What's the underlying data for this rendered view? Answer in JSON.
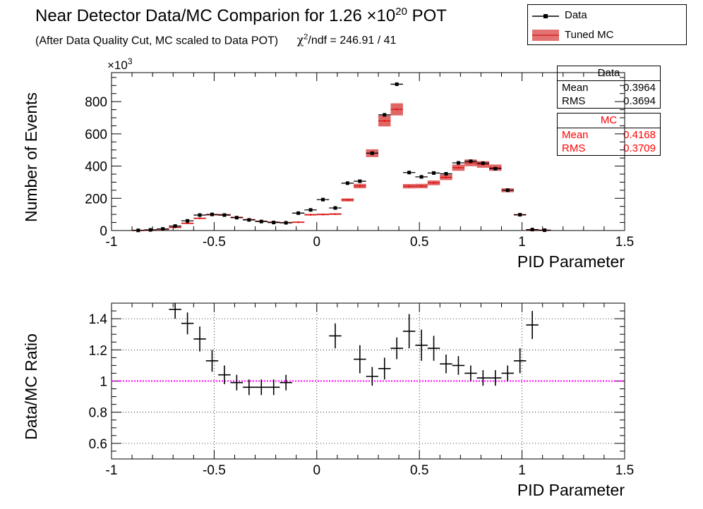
{
  "title": "Near Detector Data/MC Comparion for 1.26 ×10",
  "title_exp": "20",
  "title_tail": " POT",
  "subtitle": "(After Data Quality Cut, MC scaled to Data POT)",
  "chi_sym": "χ",
  "chi_exp": "2",
  "chi_text": "/ndf = 246.91 / 41",
  "legend": {
    "items": [
      {
        "label": "Data",
        "color": "#000000"
      },
      {
        "label": "Tuned MC",
        "color": "#cc0000"
      }
    ]
  },
  "stats_data": {
    "header": "Data",
    "mean_label": "Mean",
    "mean": "0.3964",
    "rms_label": "RMS",
    "rms": "0.3694"
  },
  "stats_mc": {
    "header": "MC",
    "mean_label": "Mean",
    "mean": "0.4168",
    "rms_label": "RMS",
    "rms": "0.3709"
  },
  "colors": {
    "data": "#000000",
    "mc_fill": "#cc0000",
    "mc_text": "#ff0000",
    "unity_line": "#ff00ff"
  },
  "chart_data": [
    {
      "type": "bar",
      "xlabel": "PID Parameter",
      "ylabel": "Number of Events",
      "yexp_label": "×10",
      "yexp_power": "3",
      "xlim": [
        -1,
        1.5
      ],
      "ylim": [
        0,
        980
      ],
      "xticks": [
        "-1",
        "-0.5",
        "0",
        "0.5",
        "1",
        "1.5"
      ],
      "xtick_values": [
        -1,
        -0.5,
        0,
        0.5,
        1,
        1.5
      ],
      "yticks": [
        "0",
        "200",
        "400",
        "600",
        "800"
      ],
      "ytick_values": [
        0,
        200,
        400,
        600,
        800
      ],
      "grid": false,
      "bin_width": 0.06,
      "x": [
        -0.99,
        -0.93,
        -0.87,
        -0.81,
        -0.75,
        -0.69,
        -0.63,
        -0.57,
        -0.51,
        -0.45,
        -0.39,
        -0.33,
        -0.27,
        -0.21,
        -0.15,
        -0.09,
        -0.03,
        0.03,
        0.09,
        0.15,
        0.21,
        0.27,
        0.33,
        0.39,
        0.45,
        0.51,
        0.57,
        0.63,
        0.69,
        0.75,
        0.81,
        0.87,
        0.93,
        0.99,
        1.05,
        1.11,
        1.17,
        1.23,
        1.29,
        1.35,
        1.41,
        1.47
      ],
      "series": [
        {
          "name": "Data",
          "values": [
            0,
            0,
            1,
            4,
            10,
            28,
            60,
            96,
            100,
            96,
            80,
            66,
            56,
            50,
            48,
            108,
            128,
            192,
            140,
            294,
            306,
            480,
            718,
            908,
            360,
            333,
            357,
            352,
            420,
            430,
            418,
            384,
            250,
            98,
            6,
            2,
            0,
            0,
            0,
            0,
            0,
            0
          ]
        },
        {
          "name": "Tuned MC",
          "values": [
            0,
            0,
            1,
            3,
            8,
            20,
            45,
            76,
            98,
            98,
            82,
            68,
            58,
            52,
            49,
            52,
            98,
            100,
            102,
            190,
            276,
            480,
            680,
            752,
            275,
            276,
            296,
            330,
            390,
            420,
            410,
            390,
            250,
            98,
            5,
            2,
            0,
            0,
            0,
            0,
            0,
            0
          ]
        }
      ]
    },
    {
      "type": "scatter",
      "xlabel": "PID Parameter",
      "ylabel": "Data/MC Ratio",
      "xlim": [
        -1,
        1.5
      ],
      "ylim": [
        0.5,
        1.5
      ],
      "xticks": [
        "-1",
        "-0.5",
        "0",
        "0.5",
        "1",
        "1.5"
      ],
      "xtick_values": [
        -1,
        -0.5,
        0,
        0.5,
        1,
        1.5
      ],
      "yticks": [
        "0.6",
        "0.8",
        "1",
        "1.2",
        "1.4"
      ],
      "ytick_values": [
        0.6,
        0.8,
        1.0,
        1.2,
        1.4
      ],
      "grid": true,
      "reference_line": 1.0,
      "x": [
        -0.69,
        -0.63,
        -0.57,
        -0.51,
        -0.45,
        -0.39,
        -0.33,
        -0.27,
        -0.21,
        -0.15,
        0.09,
        0.21,
        0.27,
        0.33,
        0.39,
        0.45,
        0.51,
        0.57,
        0.63,
        0.69,
        0.75,
        0.81,
        0.87,
        0.93,
        0.99,
        1.05
      ],
      "values": [
        1.46,
        1.37,
        1.27,
        1.13,
        1.04,
        0.99,
        0.96,
        0.96,
        0.96,
        0.99,
        1.29,
        1.14,
        1.03,
        1.08,
        1.21,
        1.32,
        1.23,
        1.21,
        1.11,
        1.1,
        1.05,
        1.02,
        1.02,
        1.05,
        1.13,
        1.36
      ],
      "errors": [
        0.06,
        0.07,
        0.08,
        0.07,
        0.06,
        0.05,
        0.05,
        0.05,
        0.05,
        0.05,
        0.08,
        0.09,
        0.06,
        0.07,
        0.07,
        0.11,
        0.1,
        0.08,
        0.06,
        0.06,
        0.05,
        0.05,
        0.05,
        0.05,
        0.08,
        0.09
      ]
    }
  ]
}
